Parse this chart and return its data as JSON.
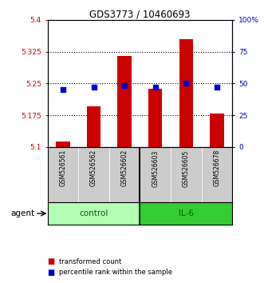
{
  "title": "GDS3773 / 10460693",
  "samples": [
    "GSM526561",
    "GSM526562",
    "GSM526602",
    "GSM526603",
    "GSM526605",
    "GSM526678"
  ],
  "groups": [
    "control",
    "control",
    "control",
    "IL-6",
    "IL-6",
    "IL-6"
  ],
  "transformed_counts": [
    5.113,
    5.195,
    5.315,
    5.237,
    5.355,
    5.178
  ],
  "percentile_ranks": [
    45,
    47,
    48,
    47,
    50,
    47
  ],
  "ylim_left": [
    5.1,
    5.4
  ],
  "ylim_right": [
    0,
    100
  ],
  "yticks_left": [
    5.1,
    5.175,
    5.25,
    5.325,
    5.4
  ],
  "yticks_right": [
    0,
    25,
    50,
    75,
    100
  ],
  "ytick_labels_left": [
    "5.1",
    "5.175",
    "5.25",
    "5.325",
    "5.4"
  ],
  "ytick_labels_right": [
    "0",
    "25",
    "50",
    "75",
    "100%"
  ],
  "hlines": [
    5.175,
    5.25,
    5.325
  ],
  "bar_color": "#cc0000",
  "dot_color": "#0000cc",
  "bar_width": 0.45,
  "dot_size": 25,
  "group_colors": {
    "control": "#b3ffb3",
    "IL-6": "#33cc33"
  },
  "group_label_color": "#006600",
  "agent_text": "agent",
  "legend_bar_label": "transformed count",
  "legend_dot_label": "percentile rank within the sample",
  "spine_color": "#000000",
  "bg_color": "#ffffff",
  "plot_bg": "#ffffff",
  "left_tick_color": "#cc0000",
  "right_tick_color": "#0000cc",
  "title_color": "#000000",
  "sample_bg_color": "#cccccc",
  "group_border_color": "#000000"
}
